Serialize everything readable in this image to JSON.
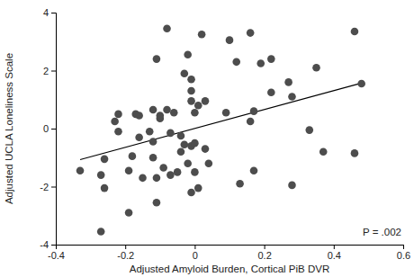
{
  "chart_data": {
    "type": "scatter",
    "x_label": "Adjusted Amyloid Burden, Cortical PiB DVR",
    "y_label": "Adjusted UCLA Loneliness Scale",
    "annotation": "P = .002",
    "color": "#4d4d4d",
    "x": [
      -0.33,
      -0.27,
      -0.27,
      -0.26,
      -0.26,
      -0.23,
      -0.22,
      -0.22,
      -0.19,
      -0.19,
      -0.18,
      -0.17,
      -0.16,
      -0.16,
      -0.15,
      -0.13,
      -0.12,
      -0.12,
      -0.12,
      -0.11,
      -0.11,
      -0.11,
      -0.1,
      -0.1,
      -0.09,
      -0.08,
      -0.08,
      -0.07,
      -0.07,
      -0.06,
      -0.05,
      -0.04,
      -0.04,
      -0.03,
      -0.03,
      -0.02,
      -0.02,
      -0.01,
      -0.01,
      -0.01,
      -0.01,
      -0.01,
      0.0,
      0.0,
      0.0,
      0.01,
      0.01,
      0.02,
      0.03,
      0.03,
      0.04,
      0.09,
      0.1,
      0.12,
      0.13,
      0.16,
      0.16,
      0.17,
      0.17,
      0.19,
      0.22,
      0.22,
      0.27,
      0.28,
      0.28,
      0.33,
      0.35,
      0.37,
      0.46,
      0.46,
      0.48
    ],
    "values": [
      -1.45,
      -1.6,
      -3.55,
      -2.05,
      -1.05,
      0.25,
      0.5,
      -0.1,
      -1.45,
      -2.9,
      -0.95,
      0.5,
      0.45,
      -0.3,
      -1.7,
      -0.1,
      0.65,
      -0.45,
      -1.0,
      2.4,
      -1.7,
      -2.55,
      0.35,
      0.45,
      -1.35,
      3.45,
      0.65,
      -0.15,
      -1.6,
      0.55,
      -1.5,
      -0.25,
      -0.8,
      1.9,
      -0.55,
      -1.2,
      2.55,
      1.7,
      1.3,
      0.95,
      -0.6,
      -2.2,
      0.55,
      -1.5,
      -0.5,
      0.8,
      -2.05,
      3.25,
      0.95,
      -0.7,
      -1.2,
      0.55,
      3.05,
      2.3,
      -1.9,
      3.3,
      0.25,
      -1.45,
      0.6,
      2.25,
      1.25,
      2.4,
      1.6,
      -1.95,
      1.1,
      -0.05,
      2.1,
      -0.8,
      3.35,
      -0.85,
      1.55
    ],
    "fit_line": {
      "x": [
        -0.33,
        0.48
      ],
      "values": [
        -1.07,
        1.57
      ],
      "color": "#000000"
    },
    "xlim": [
      -0.4,
      0.6
    ],
    "xticks": [
      -0.4,
      -0.2,
      0,
      0.2,
      0.4,
      0.6
    ],
    "ylim": [
      -4,
      4
    ],
    "yticks": [
      -4,
      -2,
      0,
      2,
      4
    ],
    "grid": false
  }
}
